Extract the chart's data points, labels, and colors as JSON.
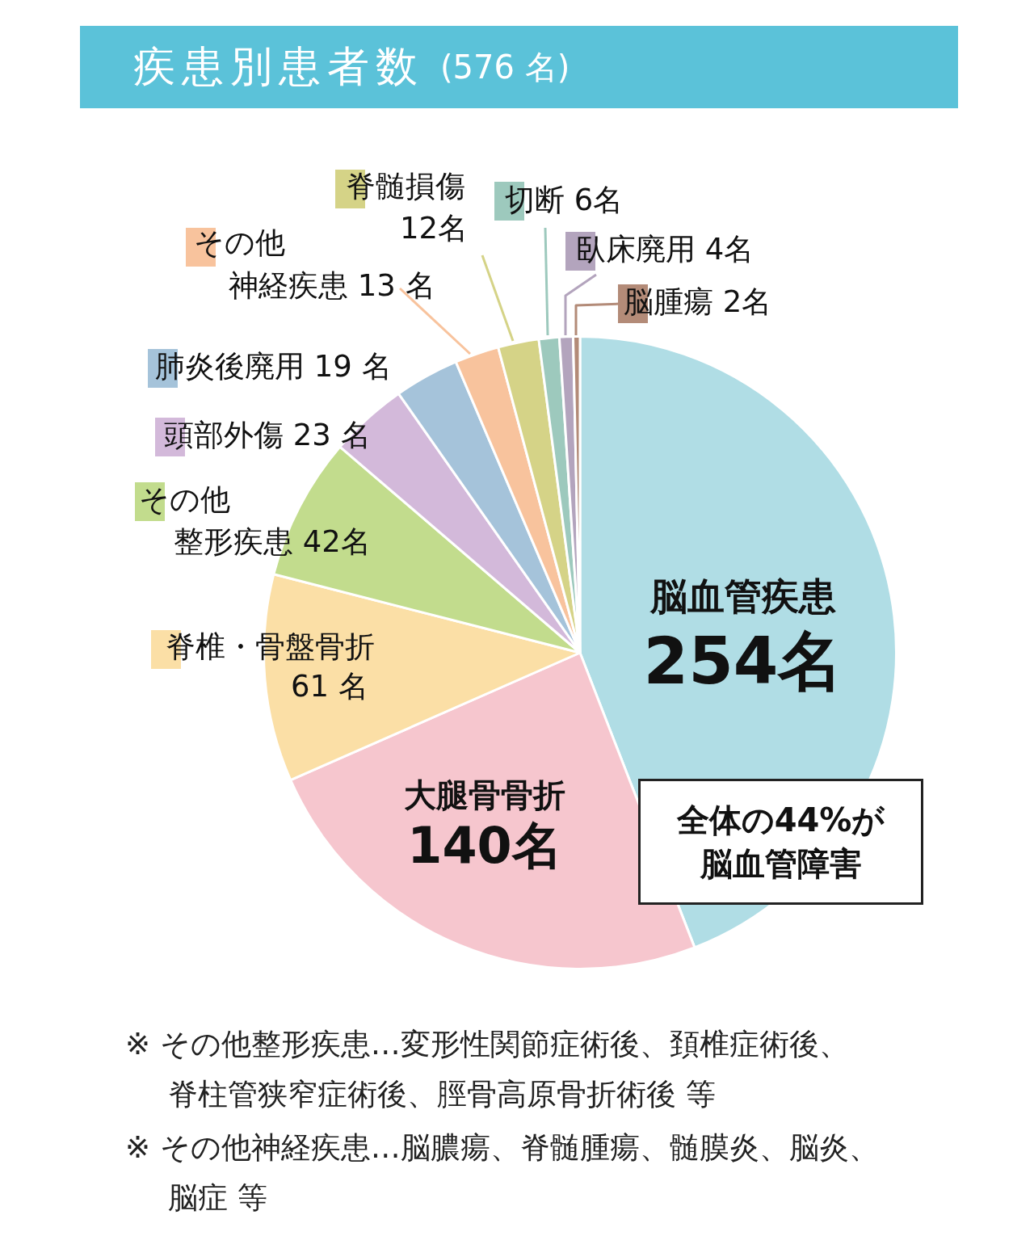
{
  "chart_data": {
    "type": "pie",
    "title": "疾患別患者数",
    "subtitle": "(576 名)",
    "categories": [
      "脳血管疾患",
      "大腿骨骨折",
      "脊椎・骨盤骨折",
      "その他整形疾患",
      "頭部外傷",
      "肺炎後廃用",
      "その他神経疾患",
      "脊髄損傷",
      "切断",
      "臥床廃用",
      "脳腫瘍"
    ],
    "values": [
      254,
      140,
      61,
      42,
      23,
      19,
      13,
      12,
      6,
      4,
      2
    ],
    "value_labels": [
      "254名",
      "140名",
      "61 名",
      "42名",
      "23 名",
      "19 名",
      "13 名",
      "12名",
      "6名",
      "4名",
      "2名"
    ],
    "colors": [
      "#b0dde5",
      "#f6c6ce",
      "#fbdfa6",
      "#c2dc8d",
      "#d3b9da",
      "#a5c3da",
      "#f8c39d",
      "#d5d387",
      "#9dc9bd",
      "#b3a4bd",
      "#b38b78"
    ],
    "legend": false,
    "annotations": [
      "全体の44%が脳血管障害",
      "※ その他整形疾患…変形性関節症術後、頚椎症術後、脊柱管狭窄症術後、脛骨高原骨折術後 等",
      "※ その他神経疾患…脳膿瘍、脊髄腫瘍、髄膜炎、脳炎、脳症 等"
    ]
  }
}
